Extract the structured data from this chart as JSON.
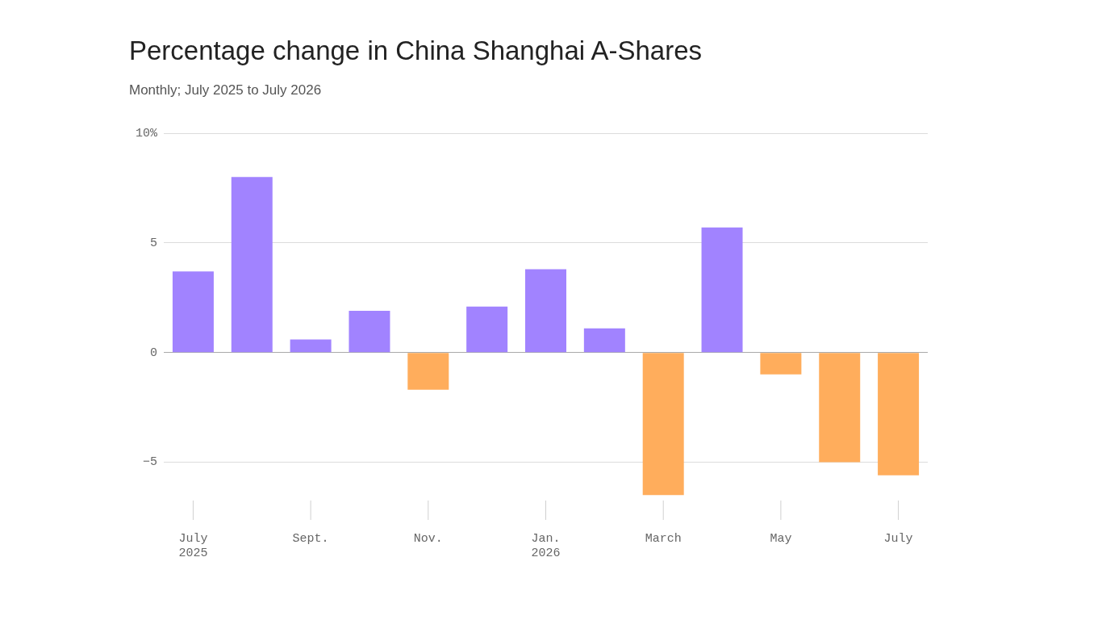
{
  "chart_data": {
    "type": "bar",
    "title": "Percentage change in China Shanghai A-Shares",
    "subtitle": "Monthly; July 2025 to July 2026",
    "categories": [
      "July\n2025",
      null,
      "Sept.",
      null,
      "Nov.",
      null,
      "Jan.\n2026",
      null,
      "March",
      null,
      "May",
      null,
      "July"
    ],
    "values": [
      3.7,
      8.0,
      0.6,
      1.9,
      -1.7,
      2.1,
      3.8,
      1.1,
      -6.5,
      5.7,
      -1.0,
      -5.0,
      -5.6
    ],
    "colors": [
      "#a183ff",
      "#a183ff",
      "#a183ff",
      "#a183ff",
      "#ffad5c",
      "#a183ff",
      "#a183ff",
      "#a183ff",
      "#ffad5c",
      "#a183ff",
      "#ffad5c",
      "#ffad5c",
      "#ffad5c"
    ],
    "ylim": [
      -6.6,
      10
    ],
    "yticks": [
      {
        "value": -5,
        "label": "−5"
      },
      0,
      5,
      {
        "value": 10,
        "label": "10%"
      }
    ],
    "grid": "y",
    "legend": false
  }
}
